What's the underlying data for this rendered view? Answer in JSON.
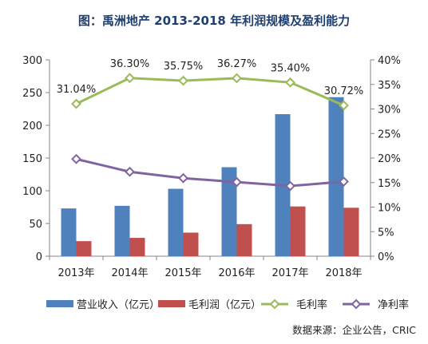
{
  "chart_data": {
    "type": "bar",
    "title": "图：禹洲地产 2013-2018 年利润规模及盈利能力",
    "categories": [
      "2013年",
      "2014年",
      "2015年",
      "2016年",
      "2017年",
      "2018年"
    ],
    "series": [
      {
        "name": "营业收入（亿元）",
        "type": "bar",
        "axis": "left",
        "color": "#4f81bd",
        "values": [
          73,
          77,
          103,
          136,
          217,
          243
        ]
      },
      {
        "name": "毛利润（亿元）",
        "type": "bar",
        "axis": "left",
        "color": "#c0504d",
        "values": [
          23,
          28,
          36,
          49,
          76,
          74
        ]
      },
      {
        "name": "毛利率",
        "type": "line",
        "axis": "right",
        "color": "#9bbb59",
        "values": [
          31.04,
          36.3,
          35.75,
          36.27,
          35.4,
          30.72
        ],
        "labels": [
          "31.04%",
          "36.30%",
          "35.75%",
          "36.27%",
          "35.40%",
          "30.72%"
        ]
      },
      {
        "name": "净利率",
        "type": "line",
        "axis": "right",
        "color": "#8064a2",
        "values": [
          19.8,
          17.2,
          15.9,
          15.1,
          14.3,
          15.2
        ]
      }
    ],
    "y_left": {
      "min": 0,
      "max": 300,
      "step": 50,
      "ticks": [
        "0",
        "50",
        "100",
        "150",
        "200",
        "250",
        "300"
      ]
    },
    "y_right": {
      "min": 0,
      "max": 40,
      "step": 5,
      "ticks": [
        "0%",
        "5%",
        "10%",
        "15%",
        "20%",
        "25%",
        "30%",
        "35%",
        "40%"
      ]
    },
    "grid": false,
    "legend_position": "bottom",
    "source": "数据来源：企业公告，CRIC"
  }
}
